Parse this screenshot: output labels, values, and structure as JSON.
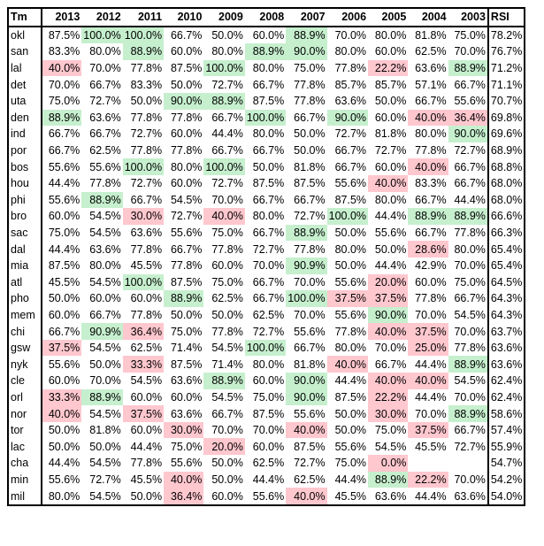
{
  "columns": [
    "Tm",
    "2013",
    "2012",
    "2011",
    "2010",
    "2009",
    "2008",
    "2007",
    "2006",
    "2005",
    "2004",
    "2003",
    "RSI"
  ],
  "colors": {
    "green": "#c6efce",
    "red": "#ffc7ce"
  },
  "rows": [
    {
      "team": "okl",
      "values": [
        "87.5%",
        "100.0%",
        "100.0%",
        "66.7%",
        "50.0%",
        "60.0%",
        "88.9%",
        "70.0%",
        "80.0%",
        "81.8%",
        "75.0%"
      ],
      "rsi": "78.2%",
      "hl": [
        "",
        "g",
        "g",
        "",
        "",
        "",
        "g",
        "",
        "",
        "",
        ""
      ]
    },
    {
      "team": "san",
      "values": [
        "83.3%",
        "80.0%",
        "88.9%",
        "60.0%",
        "80.0%",
        "88.9%",
        "90.0%",
        "80.0%",
        "60.0%",
        "62.5%",
        "70.0%"
      ],
      "rsi": "76.7%",
      "hl": [
        "",
        "",
        "g",
        "",
        "",
        "g",
        "g",
        "",
        "",
        "",
        ""
      ]
    },
    {
      "team": "lal",
      "values": [
        "40.0%",
        "70.0%",
        "77.8%",
        "87.5%",
        "100.0%",
        "80.0%",
        "75.0%",
        "77.8%",
        "22.2%",
        "63.6%",
        "88.9%"
      ],
      "rsi": "71.2%",
      "hl": [
        "r",
        "",
        "",
        "",
        "g",
        "",
        "",
        "",
        "r",
        "",
        "g"
      ]
    },
    {
      "team": "det",
      "values": [
        "70.0%",
        "66.7%",
        "83.3%",
        "50.0%",
        "72.7%",
        "66.7%",
        "77.8%",
        "85.7%",
        "85.7%",
        "57.1%",
        "66.7%"
      ],
      "rsi": "71.1%",
      "hl": [
        "",
        "",
        "",
        "",
        "",
        "",
        "",
        "",
        "",
        "",
        ""
      ]
    },
    {
      "team": "uta",
      "values": [
        "75.0%",
        "72.7%",
        "50.0%",
        "90.0%",
        "88.9%",
        "87.5%",
        "77.8%",
        "63.6%",
        "50.0%",
        "66.7%",
        "55.6%"
      ],
      "rsi": "70.7%",
      "hl": [
        "",
        "",
        "",
        "g",
        "g",
        "",
        "",
        "",
        "",
        "",
        ""
      ]
    },
    {
      "team": "den",
      "values": [
        "88.9%",
        "63.6%",
        "77.8%",
        "77.8%",
        "66.7%",
        "100.0%",
        "66.7%",
        "90.0%",
        "60.0%",
        "40.0%",
        "36.4%"
      ],
      "rsi": "69.8%",
      "hl": [
        "g",
        "",
        "",
        "",
        "",
        "g",
        "",
        "g",
        "",
        "r",
        "r"
      ]
    },
    {
      "team": "ind",
      "values": [
        "66.7%",
        "66.7%",
        "72.7%",
        "60.0%",
        "44.4%",
        "80.0%",
        "50.0%",
        "72.7%",
        "81.8%",
        "80.0%",
        "90.0%"
      ],
      "rsi": "69.6%",
      "hl": [
        "",
        "",
        "",
        "",
        "",
        "",
        "",
        "",
        "",
        "",
        "g"
      ]
    },
    {
      "team": "por",
      "values": [
        "66.7%",
        "62.5%",
        "77.8%",
        "77.8%",
        "66.7%",
        "66.7%",
        "50.0%",
        "66.7%",
        "72.7%",
        "77.8%",
        "72.7%"
      ],
      "rsi": "68.9%",
      "hl": [
        "",
        "",
        "",
        "",
        "",
        "",
        "",
        "",
        "",
        "",
        ""
      ]
    },
    {
      "team": "bos",
      "values": [
        "55.6%",
        "55.6%",
        "100.0%",
        "80.0%",
        "100.0%",
        "50.0%",
        "81.8%",
        "66.7%",
        "60.0%",
        "40.0%",
        "66.7%"
      ],
      "rsi": "68.8%",
      "hl": [
        "",
        "",
        "g",
        "",
        "g",
        "",
        "",
        "",
        "",
        "r",
        ""
      ]
    },
    {
      "team": "hou",
      "values": [
        "44.4%",
        "77.8%",
        "72.7%",
        "60.0%",
        "72.7%",
        "87.5%",
        "87.5%",
        "55.6%",
        "40.0%",
        "83.3%",
        "66.7%"
      ],
      "rsi": "68.0%",
      "hl": [
        "",
        "",
        "",
        "",
        "",
        "",
        "",
        "",
        "r",
        "",
        ""
      ]
    },
    {
      "team": "phi",
      "values": [
        "55.6%",
        "88.9%",
        "66.7%",
        "54.5%",
        "70.0%",
        "66.7%",
        "66.7%",
        "87.5%",
        "80.0%",
        "66.7%",
        "44.4%"
      ],
      "rsi": "68.0%",
      "hl": [
        "",
        "g",
        "",
        "",
        "",
        "",
        "",
        "",
        "",
        "",
        ""
      ]
    },
    {
      "team": "bro",
      "values": [
        "60.0%",
        "54.5%",
        "30.0%",
        "72.7%",
        "40.0%",
        "80.0%",
        "72.7%",
        "100.0%",
        "44.4%",
        "88.9%",
        "88.9%"
      ],
      "rsi": "66.6%",
      "hl": [
        "",
        "",
        "r",
        "",
        "r",
        "",
        "",
        "g",
        "",
        "g",
        "g"
      ]
    },
    {
      "team": "sac",
      "values": [
        "75.0%",
        "54.5%",
        "63.6%",
        "55.6%",
        "75.0%",
        "66.7%",
        "88.9%",
        "50.0%",
        "55.6%",
        "66.7%",
        "77.8%"
      ],
      "rsi": "66.3%",
      "hl": [
        "",
        "",
        "",
        "",
        "",
        "",
        "g",
        "",
        "",
        "",
        ""
      ]
    },
    {
      "team": "dal",
      "values": [
        "44.4%",
        "63.6%",
        "77.8%",
        "66.7%",
        "77.8%",
        "72.7%",
        "77.8%",
        "80.0%",
        "50.0%",
        "28.6%",
        "80.0%"
      ],
      "rsi": "65.4%",
      "hl": [
        "",
        "",
        "",
        "",
        "",
        "",
        "",
        "",
        "",
        "r",
        ""
      ]
    },
    {
      "team": "mia",
      "values": [
        "87.5%",
        "80.0%",
        "45.5%",
        "77.8%",
        "60.0%",
        "70.0%",
        "90.9%",
        "50.0%",
        "44.4%",
        "42.9%",
        "70.0%"
      ],
      "rsi": "65.4%",
      "hl": [
        "",
        "",
        "",
        "",
        "",
        "",
        "g",
        "",
        "",
        "",
        ""
      ]
    },
    {
      "team": "atl",
      "values": [
        "45.5%",
        "54.5%",
        "100.0%",
        "87.5%",
        "75.0%",
        "66.7%",
        "70.0%",
        "55.6%",
        "20.0%",
        "60.0%",
        "75.0%"
      ],
      "rsi": "64.5%",
      "hl": [
        "",
        "",
        "g",
        "",
        "",
        "",
        "",
        "",
        "r",
        "",
        ""
      ]
    },
    {
      "team": "pho",
      "values": [
        "50.0%",
        "60.0%",
        "60.0%",
        "88.9%",
        "62.5%",
        "66.7%",
        "100.0%",
        "37.5%",
        "37.5%",
        "77.8%",
        "66.7%"
      ],
      "rsi": "64.3%",
      "hl": [
        "",
        "",
        "",
        "g",
        "",
        "",
        "g",
        "r",
        "r",
        "",
        ""
      ]
    },
    {
      "team": "mem",
      "values": [
        "60.0%",
        "66.7%",
        "77.8%",
        "50.0%",
        "50.0%",
        "62.5%",
        "70.0%",
        "55.6%",
        "90.0%",
        "70.0%",
        "54.5%"
      ],
      "rsi": "64.3%",
      "hl": [
        "",
        "",
        "",
        "",
        "",
        "",
        "",
        "",
        "g",
        "",
        ""
      ]
    },
    {
      "team": "chi",
      "values": [
        "66.7%",
        "90.9%",
        "36.4%",
        "75.0%",
        "77.8%",
        "72.7%",
        "55.6%",
        "77.8%",
        "40.0%",
        "37.5%",
        "70.0%"
      ],
      "rsi": "63.7%",
      "hl": [
        "",
        "g",
        "r",
        "",
        "",
        "",
        "",
        "",
        "r",
        "r",
        ""
      ]
    },
    {
      "team": "gsw",
      "values": [
        "37.5%",
        "54.5%",
        "62.5%",
        "71.4%",
        "54.5%",
        "100.0%",
        "66.7%",
        "80.0%",
        "70.0%",
        "25.0%",
        "77.8%"
      ],
      "rsi": "63.6%",
      "hl": [
        "r",
        "",
        "",
        "",
        "",
        "g",
        "",
        "",
        "",
        "r",
        ""
      ]
    },
    {
      "team": "nyk",
      "values": [
        "55.6%",
        "50.0%",
        "33.3%",
        "87.5%",
        "71.4%",
        "80.0%",
        "81.8%",
        "40.0%",
        "66.7%",
        "44.4%",
        "88.9%"
      ],
      "rsi": "63.6%",
      "hl": [
        "",
        "",
        "r",
        "",
        "",
        "",
        "",
        "r",
        "",
        "",
        "g"
      ]
    },
    {
      "team": "cle",
      "values": [
        "60.0%",
        "70.0%",
        "54.5%",
        "63.6%",
        "88.9%",
        "60.0%",
        "90.0%",
        "44.4%",
        "40.0%",
        "40.0%",
        "54.5%"
      ],
      "rsi": "62.4%",
      "hl": [
        "",
        "",
        "",
        "",
        "g",
        "",
        "g",
        "",
        "r",
        "r",
        ""
      ]
    },
    {
      "team": "orl",
      "values": [
        "33.3%",
        "88.9%",
        "60.0%",
        "60.0%",
        "54.5%",
        "75.0%",
        "90.0%",
        "87.5%",
        "22.2%",
        "44.4%",
        "70.0%"
      ],
      "rsi": "62.4%",
      "hl": [
        "r",
        "g",
        "",
        "",
        "",
        "",
        "g",
        "",
        "r",
        "",
        ""
      ]
    },
    {
      "team": "nor",
      "values": [
        "40.0%",
        "54.5%",
        "37.5%",
        "63.6%",
        "66.7%",
        "87.5%",
        "55.6%",
        "50.0%",
        "30.0%",
        "70.0%",
        "88.9%"
      ],
      "rsi": "58.6%",
      "hl": [
        "r",
        "",
        "r",
        "",
        "",
        "",
        "",
        "",
        "r",
        "",
        "g"
      ]
    },
    {
      "team": "tor",
      "values": [
        "50.0%",
        "81.8%",
        "60.0%",
        "30.0%",
        "70.0%",
        "70.0%",
        "40.0%",
        "50.0%",
        "75.0%",
        "37.5%",
        "66.7%"
      ],
      "rsi": "57.4%",
      "hl": [
        "",
        "",
        "",
        "r",
        "",
        "",
        "r",
        "",
        "",
        "r",
        ""
      ]
    },
    {
      "team": "lac",
      "values": [
        "50.0%",
        "50.0%",
        "44.4%",
        "75.0%",
        "20.0%",
        "60.0%",
        "87.5%",
        "55.6%",
        "54.5%",
        "45.5%",
        "72.7%"
      ],
      "rsi": "55.9%",
      "hl": [
        "",
        "",
        "",
        "",
        "r",
        "",
        "",
        "",
        "",
        "",
        ""
      ]
    },
    {
      "team": "cha",
      "values": [
        "44.4%",
        "54.5%",
        "77.8%",
        "55.6%",
        "50.0%",
        "62.5%",
        "72.7%",
        "75.0%",
        "0.0%",
        "",
        ""
      ],
      "rsi": "54.7%",
      "hl": [
        "",
        "",
        "",
        "",
        "",
        "",
        "",
        "",
        "r",
        "",
        ""
      ]
    },
    {
      "team": "min",
      "values": [
        "55.6%",
        "72.7%",
        "45.5%",
        "40.0%",
        "50.0%",
        "44.4%",
        "62.5%",
        "44.4%",
        "88.9%",
        "22.2%",
        "70.0%"
      ],
      "rsi": "54.2%",
      "hl": [
        "",
        "",
        "",
        "r",
        "",
        "",
        "",
        "",
        "g",
        "r",
        ""
      ]
    },
    {
      "team": "mil",
      "values": [
        "80.0%",
        "54.5%",
        "50.0%",
        "36.4%",
        "60.0%",
        "55.6%",
        "40.0%",
        "45.5%",
        "63.6%",
        "44.4%",
        "63.6%"
      ],
      "rsi": "54.0%",
      "hl": [
        "",
        "",
        "",
        "r",
        "",
        "",
        "r",
        "",
        "",
        "",
        ""
      ]
    }
  ]
}
